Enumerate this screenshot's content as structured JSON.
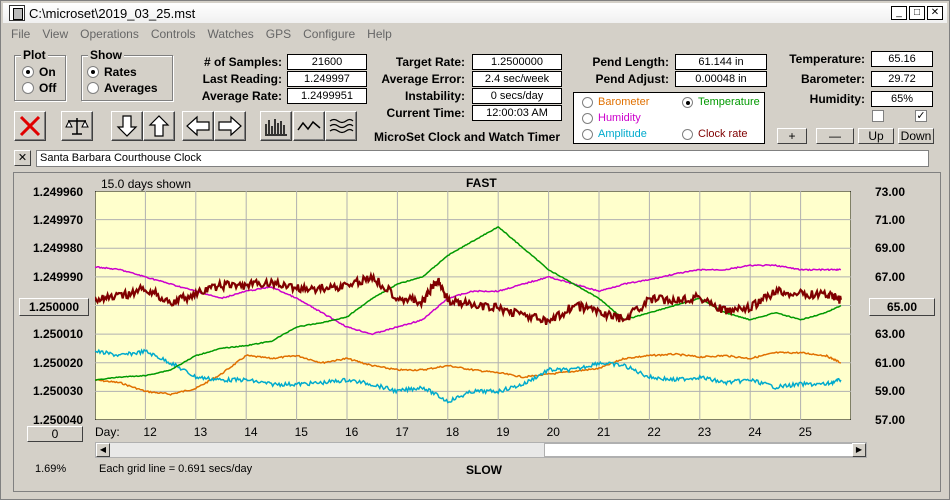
{
  "window": {
    "title": "C:\\microset\\2019_03_25.mst"
  },
  "menu": [
    "File",
    "View",
    "Operations",
    "Controls",
    "Watches",
    "GPS",
    "Configure",
    "Help"
  ],
  "plot_group": {
    "title": "Plot",
    "options": [
      "On",
      "Off"
    ],
    "selected": "On"
  },
  "show_group": {
    "title": "Show",
    "options": [
      "Rates",
      "Averages"
    ],
    "selected": "Rates"
  },
  "stats": {
    "samples_label": "# of Samples:",
    "samples_value": "21600",
    "last_label": "Last Reading:",
    "last_value": "1.249997",
    "avg_label": "Average Rate:",
    "avg_value": "1.2499951",
    "target_label": "Target Rate:",
    "target_value": "1.2500000",
    "avgerr_label": "Average Error:",
    "avgerr_value": "2.4 sec/week",
    "instab_label": "Instability:",
    "instab_value": "0 secs/day",
    "time_label": "Current Time:",
    "time_value": "12:00:03 AM",
    "pendlen_label": "Pend Length:",
    "pendlen_value": "61.144 in",
    "pendadj_label": "Pend Adjust:",
    "pendadj_value": "0.00048 in",
    "temp_label": "Temperature:",
    "temp_value": "65.16",
    "baro_label": "Barometer:",
    "baro_value": "29.72",
    "hum_label": "Humidity:",
    "hum_value": "65%"
  },
  "app_name": "MicroSet Clock and Watch Timer",
  "variables": [
    {
      "label": "Barometer",
      "color": "#e07000",
      "selected": false
    },
    {
      "label": "Temperature",
      "color": "#009900",
      "selected": true
    },
    {
      "label": "Humidity",
      "color": "#cc00cc",
      "selected": false
    },
    {
      "label": "Clock rate",
      "color": "#800000",
      "selected": false
    },
    {
      "label": "Amplitude",
      "color": "#00aacc",
      "selected": false
    }
  ],
  "adjust_buttons": [
    "+",
    "—",
    "Up",
    "Down"
  ],
  "clock_name": "Santa Barbara Courthouse Clock",
  "graph": {
    "days_shown": "15.0 days shown",
    "fast_label": "FAST",
    "slow_label": "SLOW",
    "grid_note": "Each grid line = 0.691 secs/day",
    "left_axis": [
      "1.249960",
      "1.249970",
      "1.249980",
      "1.249990",
      "1.250000",
      "1.250010",
      "1.250020",
      "1.250030",
      "1.250040"
    ],
    "right_axis": [
      "73.00",
      "71.00",
      "69.00",
      "67.00",
      "65.00",
      "63.00",
      "61.00",
      "59.00",
      "57.00"
    ],
    "day_label": "Day:",
    "days": [
      "12",
      "13",
      "14",
      "15",
      "16",
      "17",
      "18",
      "19",
      "20",
      "21",
      "22",
      "23",
      "24",
      "25"
    ],
    "center_left": "1.250000",
    "center_right": "65.00",
    "scroll_value": "0",
    "percent": "1.69%",
    "background": "#ffffcc"
  },
  "chart_data": {
    "type": "line",
    "xlabel": "Day:",
    "xlim": [
      11.0,
      26.0
    ],
    "y_left_lim": [
      1.24996,
      1.25004
    ],
    "y_right_lim": [
      57.0,
      73.0
    ],
    "series": [
      {
        "name": "Clock rate",
        "color": "#800000",
        "axis": "left",
        "x": [
          11.0,
          11.5,
          12.0,
          12.5,
          13.0,
          13.5,
          14.0,
          14.5,
          15.0,
          15.5,
          16.0,
          16.5,
          17.0,
          17.5,
          17.8,
          18.0,
          18.5,
          19.0,
          19.5,
          20.0,
          20.5,
          21.0,
          21.5,
          22.0,
          22.5,
          23.0,
          23.5,
          24.0,
          24.5,
          25.0,
          25.5,
          25.8
        ],
        "y": [
          1.249998,
          1.249997,
          1.249994,
          1.249999,
          1.249996,
          1.249993,
          1.249993,
          1.249992,
          1.249994,
          1.249994,
          1.249993,
          1.24999,
          1.249997,
          1.249999,
          1.249991,
          1.249998,
          1.25,
          1.250001,
          1.250003,
          1.250006,
          1.25,
          1.250002,
          1.250005,
          1.249998,
          1.249998,
          1.249997,
          1.250002,
          1.250001,
          1.249995,
          1.249996,
          1.249996,
          1.249998
        ]
      },
      {
        "name": "Temperature",
        "color": "#009900",
        "axis": "right",
        "x": [
          11.0,
          11.5,
          12.0,
          12.5,
          13.0,
          13.5,
          14.0,
          14.5,
          15.0,
          15.5,
          16.0,
          16.5,
          17.0,
          17.5,
          18.0,
          18.5,
          19.0,
          19.5,
          20.0,
          20.5,
          21.0,
          21.5,
          22.0,
          22.5,
          23.0,
          23.5,
          24.0,
          24.5,
          25.0,
          25.5,
          25.8
        ],
        "y": [
          59.8,
          60.0,
          60.1,
          60.5,
          61.5,
          62.0,
          62.2,
          62.5,
          63.5,
          63.8,
          64.2,
          65.5,
          66.5,
          67.0,
          68.5,
          69.5,
          70.5,
          69.0,
          67.5,
          66.5,
          65.5,
          64.0,
          64.5,
          65.0,
          65.5,
          64.5,
          64.0,
          64.5,
          64.0,
          64.5,
          65.0
        ]
      },
      {
        "name": "Humidity",
        "color": "#cc00cc",
        "axis": "right",
        "x": [
          11.0,
          11.5,
          12.0,
          12.5,
          13.0,
          13.5,
          14.0,
          14.5,
          15.0,
          15.5,
          16.0,
          16.5,
          17.0,
          17.5,
          18.0,
          18.5,
          19.0,
          19.5,
          20.0,
          20.5,
          21.0,
          21.5,
          22.0,
          22.5,
          23.0,
          23.5,
          24.0,
          24.5,
          25.0,
          25.5,
          25.8
        ],
        "y": [
          67.7,
          67.5,
          67.0,
          66.5,
          66.0,
          65.5,
          66.0,
          66.3,
          65.5,
          64.5,
          63.5,
          63.0,
          63.5,
          64.0,
          65.5,
          66.0,
          66.0,
          66.5,
          67.0,
          66.5,
          66.0,
          66.5,
          66.8,
          67.2,
          67.5,
          67.5,
          67.8,
          67.8,
          67.5,
          67.5,
          67.5
        ]
      },
      {
        "name": "Amplitude",
        "color": "#00aacc",
        "axis": "right",
        "x": [
          11.0,
          11.5,
          12.0,
          12.5,
          13.0,
          13.5,
          14.0,
          14.5,
          15.0,
          15.5,
          16.0,
          16.5,
          17.0,
          17.5,
          18.0,
          18.5,
          19.0,
          19.5,
          20.0,
          20.5,
          21.0,
          21.5,
          22.0,
          22.5,
          23.0,
          23.5,
          24.0,
          24.5,
          25.0,
          25.5,
          25.8
        ],
        "y": [
          61.8,
          61.5,
          61.8,
          61.0,
          60.0,
          59.8,
          59.8,
          59.5,
          59.5,
          59.6,
          59.8,
          59.5,
          59.0,
          59.3,
          58.3,
          59.0,
          59.0,
          59.5,
          60.5,
          60.5,
          61.0,
          60.8,
          60.0,
          59.8,
          60.0,
          59.6,
          59.8,
          59.3,
          59.5,
          59.5,
          59.8
        ]
      },
      {
        "name": "Barometer",
        "color": "#e07000",
        "axis": "right",
        "x": [
          11.0,
          11.5,
          12.0,
          12.5,
          13.0,
          13.5,
          14.0,
          14.5,
          15.0,
          15.5,
          16.0,
          16.5,
          17.0,
          17.5,
          18.0,
          18.5,
          19.0,
          19.5,
          20.0,
          20.5,
          21.0,
          21.5,
          22.0,
          22.5,
          23.0,
          23.5,
          24.0,
          24.5,
          25.0,
          25.5,
          25.8
        ],
        "y": [
          59.8,
          59.6,
          59.0,
          58.8,
          59.2,
          60.2,
          61.5,
          61.3,
          61.5,
          61.0,
          61.3,
          60.8,
          60.5,
          60.5,
          60.8,
          60.5,
          60.3,
          60.0,
          60.2,
          60.4,
          60.6,
          61.3,
          61.5,
          61.6,
          61.4,
          61.5,
          61.3,
          61.7,
          61.7,
          61.5,
          61.0
        ]
      }
    ]
  }
}
